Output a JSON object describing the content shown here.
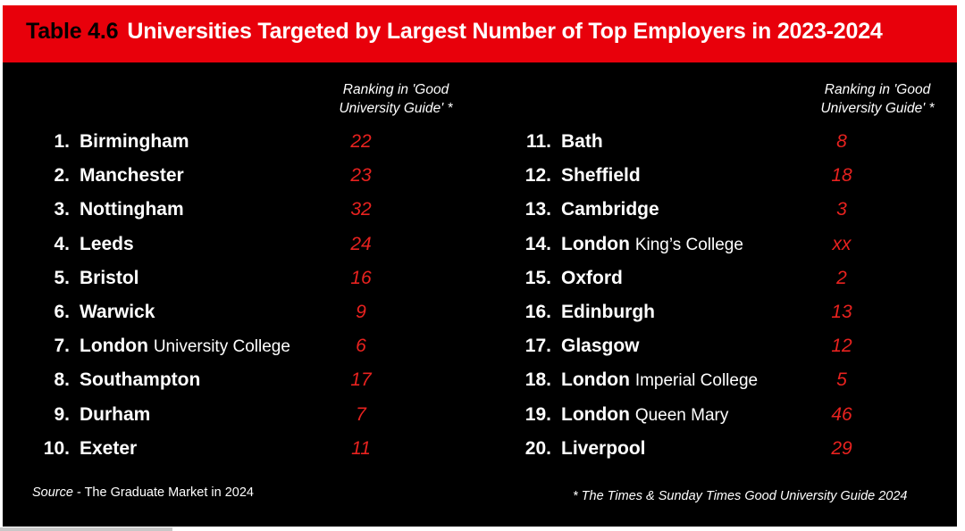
{
  "title": {
    "prefix": "Table 4.6",
    "text": "Universities Targeted by Largest Number of Top Employers in 2023-2024"
  },
  "column_header": {
    "line1": "Ranking in 'Good",
    "line2": "University Guide' *"
  },
  "rows": [
    {
      "num": "1.",
      "name": "Birmingham",
      "sub": "",
      "rank": "22"
    },
    {
      "num": "2.",
      "name": "Manchester",
      "sub": "",
      "rank": "23"
    },
    {
      "num": "3.",
      "name": "Nottingham",
      "sub": "",
      "rank": "32"
    },
    {
      "num": "4.",
      "name": "Leeds",
      "sub": "",
      "rank": "24"
    },
    {
      "num": "5.",
      "name": "Bristol",
      "sub": "",
      "rank": "16"
    },
    {
      "num": "6.",
      "name": "Warwick",
      "sub": "",
      "rank": "9"
    },
    {
      "num": "7.",
      "name": "London",
      "sub": "University College",
      "rank": "6"
    },
    {
      "num": "8.",
      "name": "Southampton",
      "sub": "",
      "rank": "17"
    },
    {
      "num": "9.",
      "name": "Durham",
      "sub": "",
      "rank": "7"
    },
    {
      "num": "10.",
      "name": "Exeter",
      "sub": "",
      "rank": "11"
    },
    {
      "num": "11.",
      "name": "Bath",
      "sub": "",
      "rank": "8"
    },
    {
      "num": "12.",
      "name": "Sheffield",
      "sub": "",
      "rank": "18"
    },
    {
      "num": "13.",
      "name": "Cambridge",
      "sub": "",
      "rank": "3"
    },
    {
      "num": "14.",
      "name": "London",
      "sub": "King’s College",
      "rank": "xx"
    },
    {
      "num": "15.",
      "name": "Oxford",
      "sub": "",
      "rank": "2"
    },
    {
      "num": "16.",
      "name": "Edinburgh",
      "sub": "",
      "rank": "13"
    },
    {
      "num": "17.",
      "name": "Glasgow",
      "sub": "",
      "rank": "12"
    },
    {
      "num": "18.",
      "name": "London",
      "sub": "Imperial College",
      "rank": "5"
    },
    {
      "num": "19.",
      "name": "London",
      "sub": "Queen Mary",
      "rank": "46"
    },
    {
      "num": "20.",
      "name": "Liverpool",
      "sub": "",
      "rank": "29"
    }
  ],
  "source": {
    "label": "Source",
    "text": " - The Graduate Market in 2024"
  },
  "footnote": "* The Times & Sunday Times Good University Guide 2024",
  "colors": {
    "title_bar": "#e8000b",
    "background": "#000000",
    "rank_text": "#e8221f",
    "text": "#ffffff"
  }
}
